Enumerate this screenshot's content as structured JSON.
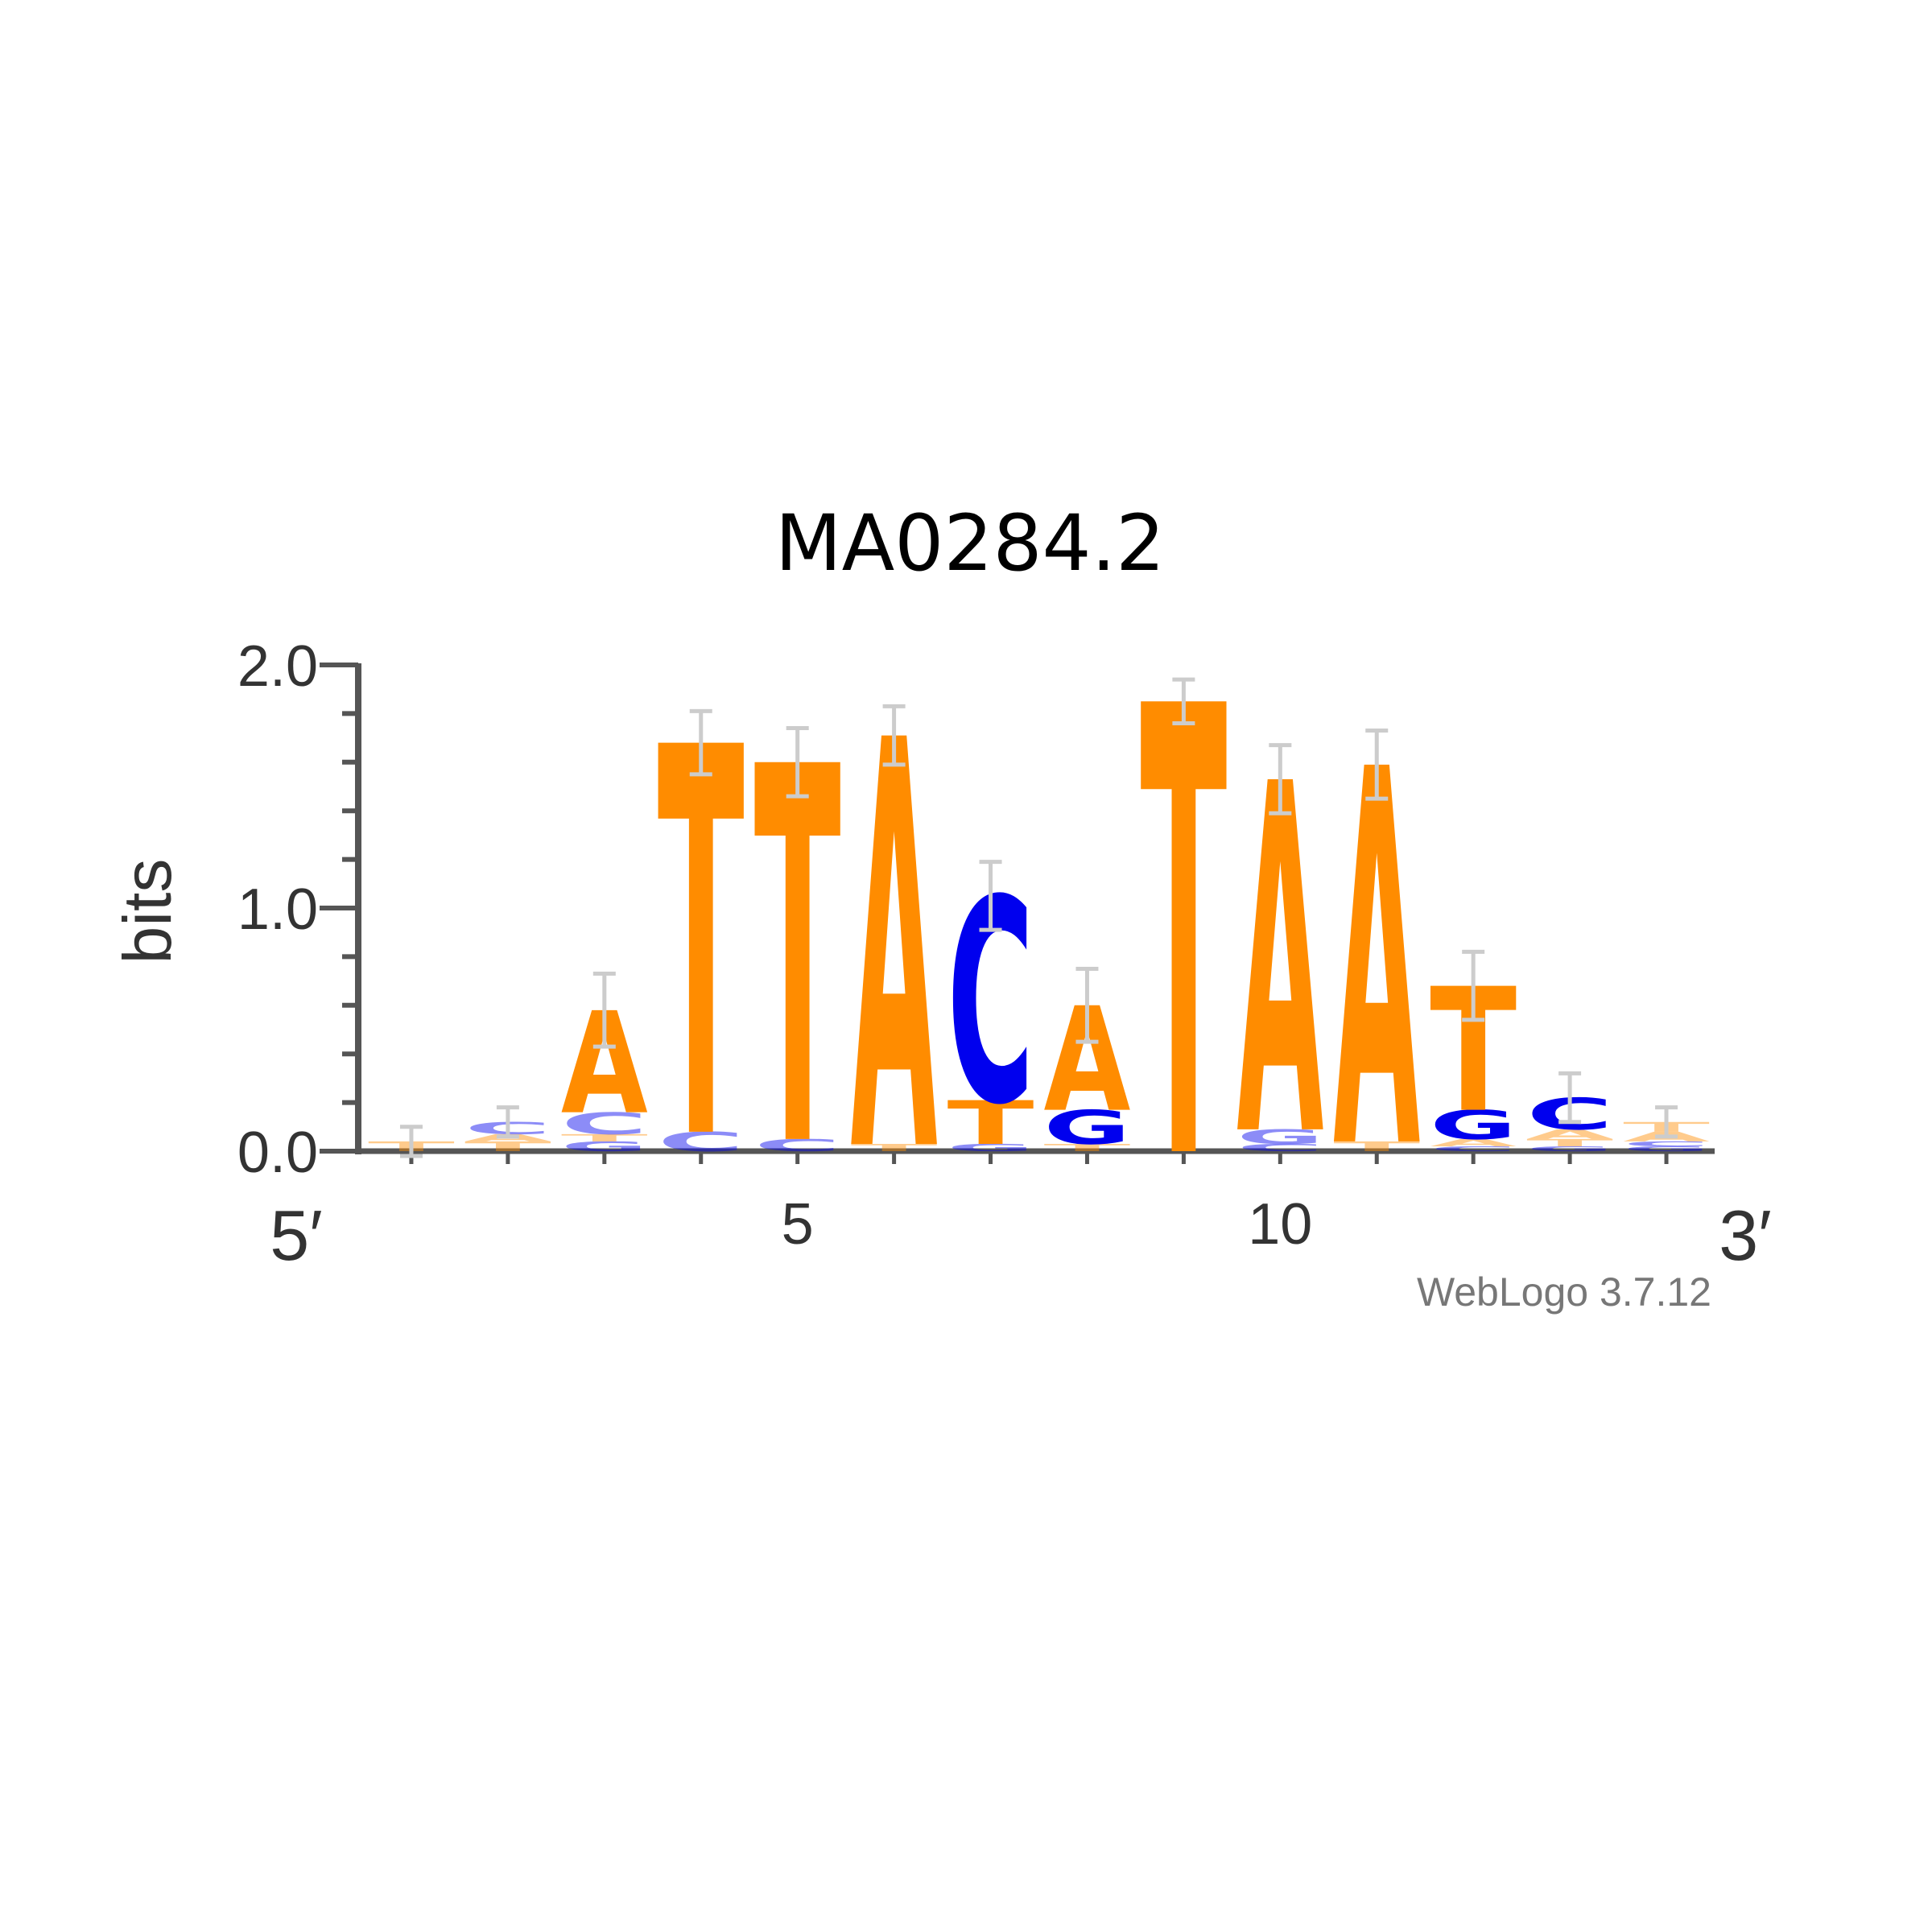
{
  "chart_data": {
    "type": "sequence_logo",
    "title": "MA0284.2",
    "ylabel": "bits",
    "ylim": [
      0,
      2
    ],
    "y_ticks": [
      "0.0",
      "1.0",
      "2.0"
    ],
    "x_tick_labels": [
      {
        "position": 5,
        "label": "5"
      },
      {
        "position": 10,
        "label": "10"
      }
    ],
    "end_labels": {
      "left": "5′",
      "right": "3′"
    },
    "credit": "WebLogo 3.7.12",
    "colors": {
      "A": "#ff8c00",
      "T": "#ff8c00",
      "C": "#0000ee",
      "G": "#0000ee"
    },
    "positions": [
      {
        "pos": 1,
        "letters": [
          {
            "base": "T",
            "bits": 0.04
          }
        ],
        "error": 0.06
      },
      {
        "pos": 2,
        "letters": [
          {
            "base": "T",
            "bits": 0.04
          },
          {
            "base": "A",
            "bits": 0.03
          },
          {
            "base": "C",
            "bits": 0.05
          }
        ],
        "error": 0.06
      },
      {
        "pos": 3,
        "letters": [
          {
            "base": "G",
            "bits": 0.04
          },
          {
            "base": "T",
            "bits": 0.03
          },
          {
            "base": "C",
            "bits": 0.09
          },
          {
            "base": "A",
            "bits": 0.42
          }
        ],
        "error": 0.15
      },
      {
        "pos": 4,
        "letters": [
          {
            "base": "C",
            "bits": 0.08
          },
          {
            "base": "T",
            "bits": 1.6
          }
        ],
        "error": 0.13
      },
      {
        "pos": 5,
        "letters": [
          {
            "base": "C",
            "bits": 0.05
          },
          {
            "base": "T",
            "bits": 1.55
          }
        ],
        "error": 0.14
      },
      {
        "pos": 6,
        "letters": [
          {
            "base": "T",
            "bits": 0.03
          },
          {
            "base": "A",
            "bits": 1.68
          }
        ],
        "error": 0.12
      },
      {
        "pos": 7,
        "letters": [
          {
            "base": "G",
            "bits": 0.03
          },
          {
            "base": "T",
            "bits": 0.18
          },
          {
            "base": "C",
            "bits": 0.84
          }
        ],
        "error": 0.14
      },
      {
        "pos": 8,
        "letters": [
          {
            "base": "T",
            "bits": 0.03
          },
          {
            "base": "G",
            "bits": 0.14
          },
          {
            "base": "A",
            "bits": 0.43
          }
        ],
        "error": 0.15
      },
      {
        "pos": 9,
        "letters": [
          {
            "base": "T",
            "bits": 1.85
          }
        ],
        "error": 0.09
      },
      {
        "pos": 10,
        "letters": [
          {
            "base": "C",
            "bits": 0.03
          },
          {
            "base": "G",
            "bits": 0.06
          },
          {
            "base": "A",
            "bits": 1.44
          }
        ],
        "error": 0.14
      },
      {
        "pos": 11,
        "letters": [
          {
            "base": "T",
            "bits": 0.04
          },
          {
            "base": "A",
            "bits": 1.55
          }
        ],
        "error": 0.14
      },
      {
        "pos": 12,
        "letters": [
          {
            "base": "C",
            "bits": 0.02
          },
          {
            "base": "A",
            "bits": 0.03
          },
          {
            "base": "G",
            "bits": 0.12
          },
          {
            "base": "T",
            "bits": 0.51
          }
        ],
        "error": 0.14
      },
      {
        "pos": 13,
        "letters": [
          {
            "base": "G",
            "bits": 0.02
          },
          {
            "base": "T",
            "bits": 0.03
          },
          {
            "base": "A",
            "bits": 0.04
          },
          {
            "base": "C",
            "bits": 0.13
          }
        ],
        "error": 0.1
      },
      {
        "pos": 14,
        "letters": [
          {
            "base": "G",
            "bits": 0.02
          },
          {
            "base": "C",
            "bits": 0.02
          },
          {
            "base": "A",
            "bits": 0.04
          },
          {
            "base": "T",
            "bits": 0.04
          }
        ],
        "error": 0.06
      }
    ]
  }
}
